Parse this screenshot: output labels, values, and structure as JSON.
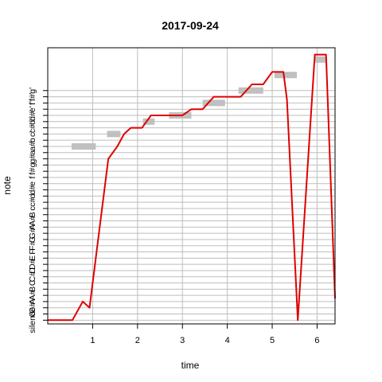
{
  "chart_data": {
    "type": "line",
    "title": "2017-09-24",
    "xlabel": "time",
    "ylabel": "note",
    "xlim": [
      0,
      6.4
    ],
    "ylim": [
      -0.6,
      43.9
    ],
    "grid": true,
    "x_ticks": [
      1,
      2,
      3,
      4,
      5,
      6
    ],
    "y_ticks": [
      "silence",
      "G",
      "G#",
      "A",
      "A#",
      "B",
      "C",
      "C#",
      "D",
      "D#",
      "E",
      "F",
      "F#",
      "G",
      "G#",
      "A",
      "A#",
      "B",
      "c",
      "c#",
      "d",
      "d#",
      "e",
      "f",
      "f#",
      "g",
      "g#",
      "a",
      "a#",
      "b",
      "c'",
      "c#'",
      "d'",
      "d#'",
      "e'",
      "f'",
      "f#'",
      "g'"
    ],
    "colors": {
      "series": "#e00000",
      "target": "#c0c0c0",
      "grid": "#bebebe"
    },
    "series": [
      {
        "x": [
          0,
          0.55,
          0.78,
          0.93,
          1.35,
          1.55,
          1.7,
          1.85,
          2.1,
          2.3,
          2.45,
          2.7,
          3.0,
          3.2,
          3.45,
          3.7,
          4.3,
          4.55,
          4.8,
          5.0,
          5.25,
          5.33,
          5.57,
          5.95,
          6.1,
          6.2,
          6.4
        ],
        "y": [
          0,
          0,
          3,
          2,
          26,
          28,
          30,
          31,
          31,
          33,
          33,
          33,
          33,
          34,
          34,
          36,
          36,
          38,
          38,
          40,
          40,
          35.5,
          0,
          42.8,
          42.8,
          42.8,
          3.5
        ]
      }
    ],
    "target_notes": [
      {
        "x0": 0.53,
        "x1": 1.07,
        "y": 28
      },
      {
        "x0": 1.32,
        "x1": 1.62,
        "y": 30
      },
      {
        "x0": 2.12,
        "x1": 2.38,
        "y": 32
      },
      {
        "x0": 2.7,
        "x1": 3.2,
        "y": 33
      },
      {
        "x0": 3.45,
        "x1": 3.95,
        "y": 35
      },
      {
        "x0": 4.25,
        "x1": 4.8,
        "y": 37
      },
      {
        "x0": 5.05,
        "x1": 5.55,
        "y": 39.5
      },
      {
        "x0": 5.95,
        "x1": 6.2,
        "y": 42
      }
    ]
  }
}
